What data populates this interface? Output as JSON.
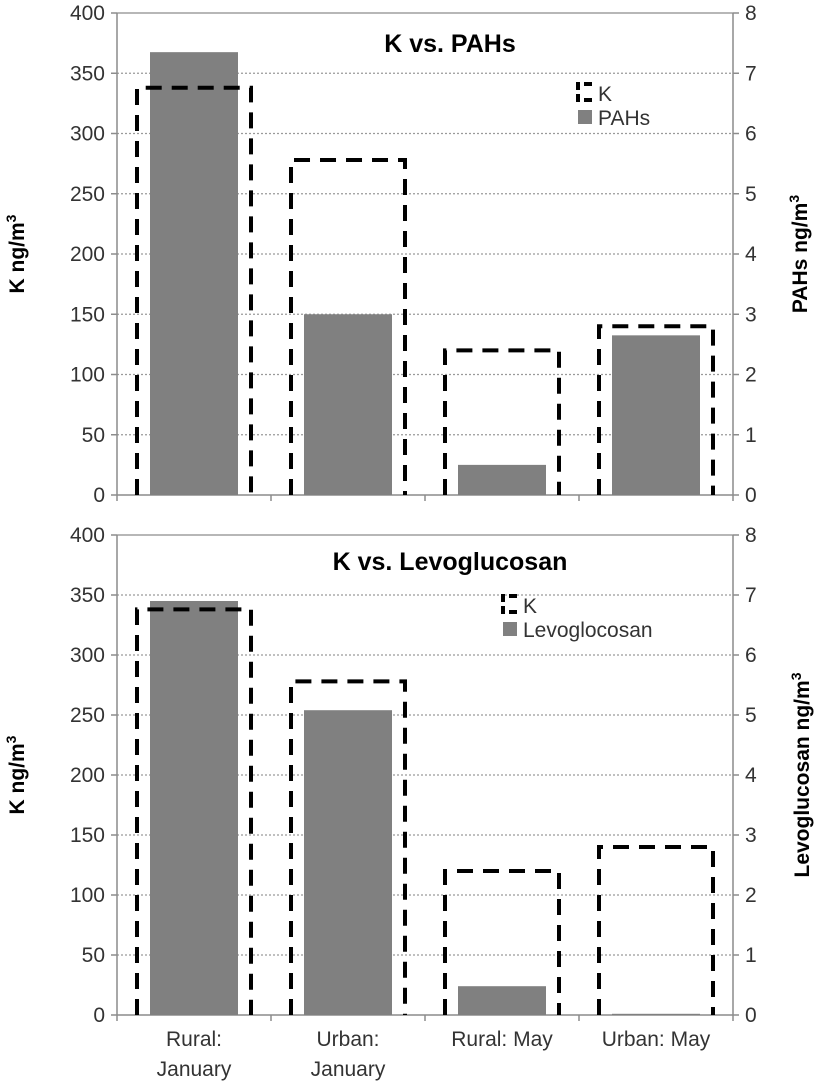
{
  "chart_data": [
    {
      "type": "bar",
      "title": "K vs. PAHs",
      "categories": [
        "Rural: January",
        "Urban: January",
        "Rural: May",
        "Urban: May"
      ],
      "ylabel": "K  ng/m³",
      "y2label": "PAHs  ng/m³",
      "ylim": [
        0,
        400
      ],
      "y2lim": [
        0,
        8
      ],
      "yticks": [
        "0",
        "50",
        "100",
        "150",
        "200",
        "250",
        "300",
        "350",
        "400"
      ],
      "y2ticks": [
        "0",
        "1",
        "2",
        "3",
        "4",
        "5",
        "6",
        "7",
        "8"
      ],
      "grid": true,
      "legend_position": "top-right",
      "series": [
        {
          "name": "K",
          "axis": "left",
          "style": "dashed-outline",
          "color": "#000000",
          "values": [
            338,
            278,
            120,
            140
          ]
        },
        {
          "name": "PAHs",
          "axis": "right",
          "style": "solid",
          "color": "#808080",
          "values": [
            7.35,
            3.0,
            0.5,
            2.65
          ]
        }
      ]
    },
    {
      "type": "bar",
      "title": "K vs. Levoglucosan",
      "categories": [
        "Rural: January",
        "Urban: January",
        "Rural: May",
        "Urban: May"
      ],
      "ylabel": "K  ng/m³",
      "y2label": "Levoglucosan  ng/m³",
      "ylim": [
        0,
        400
      ],
      "y2lim": [
        0,
        8
      ],
      "yticks": [
        "0",
        "50",
        "100",
        "150",
        "200",
        "250",
        "300",
        "350",
        "400"
      ],
      "y2ticks": [
        "0",
        "1",
        "2",
        "3",
        "4",
        "5",
        "6",
        "7",
        "8"
      ],
      "grid": true,
      "legend_position": "top-right",
      "series": [
        {
          "name": "K",
          "axis": "left",
          "style": "dashed-outline",
          "color": "#000000",
          "values": [
            338,
            278,
            120,
            140
          ]
        },
        {
          "name": "Levoglocosan",
          "axis": "right",
          "style": "solid",
          "color": "#808080",
          "values": [
            6.9,
            5.08,
            0.48,
            0.02
          ]
        }
      ]
    }
  ],
  "x_tick_labels": [
    [
      "Rural:",
      "January"
    ],
    [
      "Urban:",
      "January"
    ],
    [
      "Rural: May"
    ],
    [
      "Urban: May"
    ]
  ],
  "colors": {
    "grid": "#9a9a9a",
    "axis": "#8c8c8c",
    "bar": "#808080",
    "outline": "#000000"
  }
}
